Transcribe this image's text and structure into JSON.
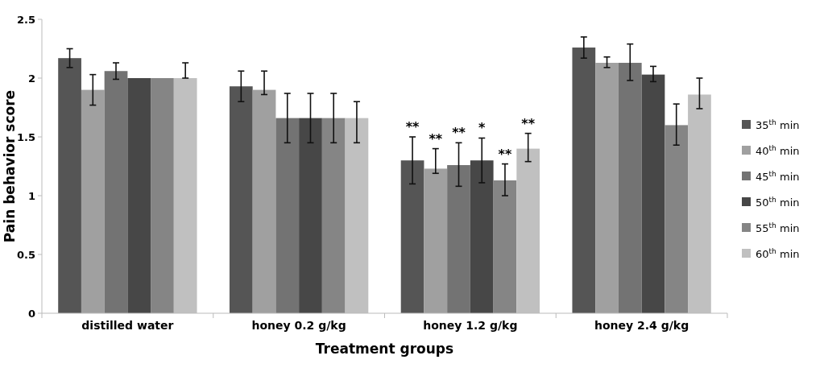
{
  "chart_data": {
    "type": "bar",
    "xlabel": "Treatment groups",
    "ylabel": "Pain behavior score",
    "categories": [
      "distilled water",
      "honey 0.2 g/kg",
      "honey 1.2 g/kg",
      "honey 2.4 g/kg"
    ],
    "series": [
      {
        "name": "35$^{th}$ min",
        "color": "#555555",
        "values": [
          2.17,
          1.93,
          1.3,
          2.26
        ],
        "errors": [
          0.08,
          0.13,
          0.2,
          0.09
        ]
      },
      {
        "name": "40$^{th}$ min",
        "color": "#a0a0a0",
        "values": [
          1.9,
          1.9,
          1.23,
          2.13
        ],
        "errors": [
          0.13,
          [
            1.86,
            2.06
          ],
          [
            1.19,
            1.4
          ],
          [
            2.09,
            2.18
          ]
        ]
      },
      {
        "name": "45$^{th}$ min",
        "color": "#737373",
        "values": [
          2.06,
          1.66,
          1.26,
          2.13
        ],
        "errors": [
          0.07,
          0.21,
          [
            1.08,
            1.45
          ],
          [
            1.98,
            2.29
          ]
        ]
      },
      {
        "name": "50$^{th}$ min",
        "color": "#474747",
        "values": [
          2.0,
          1.66,
          1.3,
          2.03
        ],
        "errors": [
          null,
          0.21,
          [
            1.11,
            1.49
          ],
          [
            1.97,
            2.1
          ]
        ]
      },
      {
        "name": "55$^{th}$ min",
        "color": "#858585",
        "values": [
          2.0,
          1.66,
          1.13,
          1.6
        ],
        "errors": [
          null,
          0.21,
          [
            1.0,
            1.27
          ],
          [
            1.43,
            1.78
          ]
        ]
      },
      {
        "name": "60$^{th}$ min",
        "color": "#c0c0c0",
        "values": [
          2.0,
          1.66,
          1.4,
          1.86
        ],
        "errors": [
          [
            2.0,
            2.13
          ],
          [
            1.45,
            1.8
          ],
          [
            1.29,
            1.53
          ],
          [
            1.74,
            2.0
          ]
        ]
      }
    ],
    "annotations": [
      "**",
      "**",
      "**",
      "*",
      "**",
      "**"
    ],
    "ylim": [
      0,
      2.5
    ],
    "yticks": [
      0,
      0.5,
      1,
      1.5,
      2,
      2.5
    ],
    "legend": "right",
    "grid": false
  }
}
